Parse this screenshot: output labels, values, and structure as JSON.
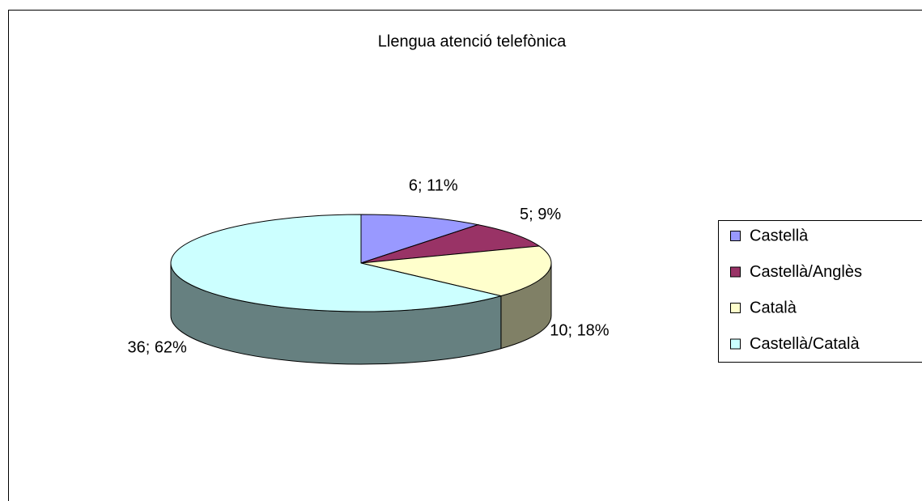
{
  "chart_data": {
    "type": "pie3d",
    "title": "Llengua atenció telefònica",
    "categories": [
      "Castellà",
      "Castellà/Anglès",
      "Català",
      "Castellà/Català"
    ],
    "values": [
      6,
      5,
      10,
      36
    ],
    "value_labels": [
      "6; 11%",
      "5; 9%",
      "10; 18%",
      "36; 62%"
    ],
    "colors": [
      "#9999ff",
      "#993366",
      "#ffffcc",
      "#ccffff"
    ],
    "legend": "right"
  }
}
